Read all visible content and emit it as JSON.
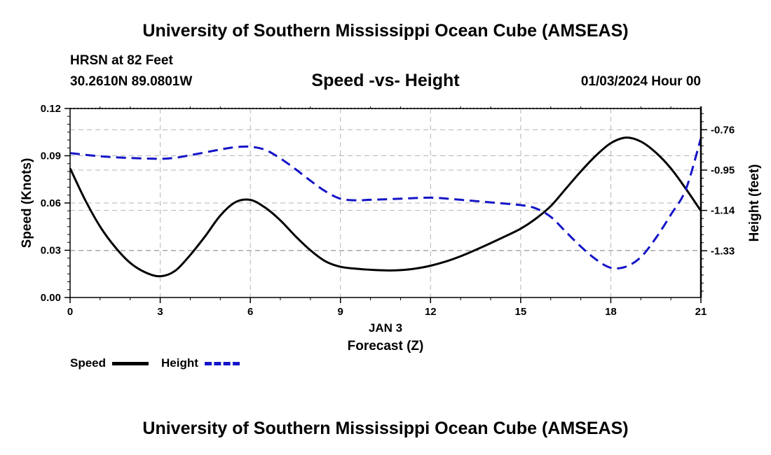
{
  "header": {
    "title": "University of Southern Mississippi Ocean Cube (AMSEAS)",
    "station": "HRSN at 82 Feet",
    "coordinates": "30.2610N  89.0801W",
    "subtitle": "Speed -vs- Height",
    "datetime": "01/03/2024 Hour 00"
  },
  "footer": {
    "title": "University of Southern Mississippi Ocean Cube (AMSEAS)"
  },
  "colors": {
    "speed": "#000000",
    "height": "#1414c8",
    "grid": "#b4b4b4"
  },
  "chart_data": {
    "type": "line",
    "title": "Speed -vs- Height",
    "xlabel": "Forecast (Z)",
    "x_sublabel": "JAN 3",
    "ylabel": "Speed (Knots)",
    "y2label": "Height (feet)",
    "xlim": [
      0,
      21
    ],
    "ylim": [
      0,
      0.12
    ],
    "y2lim": [
      -1.55,
      -0.66
    ],
    "x_ticks": [
      "0",
      "3",
      "6",
      "9",
      "12",
      "15",
      "18",
      "21"
    ],
    "x_tick_values": [
      0,
      3,
      6,
      9,
      12,
      15,
      18,
      21
    ],
    "y_ticks": [
      "0.00",
      "0.03",
      "0.06",
      "0.09",
      "0.12"
    ],
    "y_tick_values": [
      0,
      0.03,
      0.06,
      0.09,
      0.12
    ],
    "y2_ticks": [
      "-0.76",
      "-0.95",
      "-1.14",
      "-1.33"
    ],
    "y2_tick_values": [
      -0.76,
      -0.95,
      -1.14,
      -1.33
    ],
    "grid": true,
    "legend": [
      "Speed",
      "Height"
    ],
    "legend_position": "bottom-left",
    "series": [
      {
        "name": "Speed",
        "axis": "left",
        "x": [
          0,
          0.5,
          1,
          1.5,
          2,
          2.5,
          3,
          3.5,
          4,
          4.5,
          5,
          5.5,
          6,
          6.5,
          7,
          7.5,
          8,
          8.5,
          9,
          9.5,
          10,
          10.5,
          11,
          11.5,
          12,
          12.5,
          13,
          13.5,
          14,
          14.5,
          15,
          15.5,
          16,
          16.5,
          17,
          17.5,
          18,
          18.5,
          19,
          19.5,
          20,
          20.5,
          21
        ],
        "values": [
          0.082,
          0.062,
          0.045,
          0.032,
          0.022,
          0.016,
          0.0135,
          0.017,
          0.027,
          0.039,
          0.052,
          0.0605,
          0.062,
          0.057,
          0.049,
          0.039,
          0.03,
          0.023,
          0.0195,
          0.0183,
          0.0176,
          0.0172,
          0.0174,
          0.0184,
          0.0202,
          0.0228,
          0.0262,
          0.0302,
          0.0345,
          0.039,
          0.0437,
          0.05,
          0.058,
          0.069,
          0.08,
          0.09,
          0.098,
          0.1015,
          0.099,
          0.092,
          0.082,
          0.069,
          0.055
        ]
      },
      {
        "name": "Height",
        "axis": "right",
        "x": [
          0,
          1,
          2,
          3,
          3.5,
          4,
          5,
          5.5,
          6,
          6.5,
          7,
          7.5,
          8,
          8.5,
          9,
          9.5,
          10,
          11,
          12,
          13,
          14,
          15,
          15.5,
          16,
          16.5,
          17,
          17.5,
          18,
          18.5,
          19,
          19.5,
          20,
          20.5,
          21
        ],
        "values": [
          -0.87,
          -0.885,
          -0.893,
          -0.897,
          -0.892,
          -0.88,
          -0.853,
          -0.842,
          -0.84,
          -0.855,
          -0.895,
          -0.945,
          -1.0,
          -1.05,
          -1.085,
          -1.092,
          -1.09,
          -1.085,
          -1.08,
          -1.09,
          -1.102,
          -1.115,
          -1.13,
          -1.17,
          -1.24,
          -1.31,
          -1.37,
          -1.41,
          -1.405,
          -1.36,
          -1.27,
          -1.16,
          -1.04,
          -0.8
        ]
      }
    ]
  }
}
